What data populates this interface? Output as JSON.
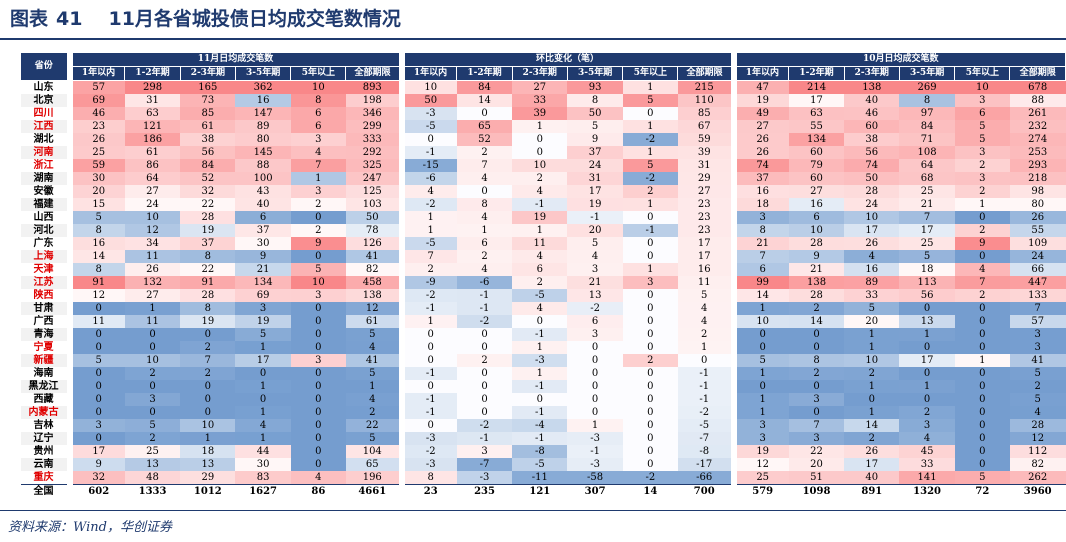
{
  "figure": {
    "label": "图表",
    "number": "41",
    "title": "11月各省城投债日均成交笔数情况"
  },
  "source": "资料来源：Wind，华创证券",
  "table": {
    "province_header": "省份",
    "groups": [
      "11月日均成交笔数",
      "环比变化（笔）",
      "10月日均成交笔数"
    ],
    "subheaders": [
      "1年以内",
      "1-2年期",
      "2-3年期",
      "3-5年期",
      "5年以上",
      "全部期限"
    ],
    "colors": {
      "header_bg": "#1f3a6e",
      "red_text": "#e00000"
    },
    "rows": [
      {
        "name": "山东",
        "red": false,
        "v": [
          57,
          298,
          165,
          362,
          10,
          893,
          10,
          84,
          27,
          93,
          1,
          215,
          47,
          214,
          138,
          269,
          10,
          678
        ]
      },
      {
        "name": "北京",
        "red": false,
        "v": [
          69,
          31,
          73,
          16,
          8,
          198,
          50,
          14,
          33,
          8,
          5,
          110,
          19,
          17,
          40,
          8,
          3,
          88
        ]
      },
      {
        "name": "四川",
        "red": true,
        "v": [
          46,
          63,
          85,
          147,
          6,
          346,
          -3,
          0,
          39,
          50,
          0,
          85,
          49,
          63,
          46,
          97,
          6,
          261
        ]
      },
      {
        "name": "江西",
        "red": true,
        "v": [
          23,
          121,
          61,
          89,
          6,
          299,
          -5,
          65,
          1,
          5,
          1,
          67,
          27,
          55,
          60,
          84,
          5,
          232
        ]
      },
      {
        "name": "湖北",
        "red": false,
        "v": [
          26,
          186,
          38,
          80,
          3,
          333,
          0,
          52,
          0,
          9,
          -2,
          59,
          26,
          134,
          38,
          71,
          5,
          274
        ]
      },
      {
        "name": "河南",
        "red": true,
        "v": [
          25,
          61,
          56,
          145,
          4,
          292,
          -1,
          2,
          0,
          37,
          1,
          39,
          26,
          60,
          56,
          108,
          3,
          253
        ]
      },
      {
        "name": "浙江",
        "red": true,
        "v": [
          59,
          86,
          84,
          88,
          7,
          325,
          -15,
          7,
          10,
          24,
          5,
          31,
          74,
          79,
          74,
          64,
          2,
          293
        ]
      },
      {
        "name": "湖南",
        "red": false,
        "v": [
          30,
          64,
          52,
          100,
          1,
          247,
          -6,
          4,
          2,
          31,
          -2,
          29,
          37,
          60,
          50,
          68,
          3,
          218
        ]
      },
      {
        "name": "安徽",
        "red": false,
        "v": [
          20,
          27,
          32,
          43,
          3,
          125,
          4,
          0,
          4,
          17,
          2,
          27,
          16,
          27,
          28,
          25,
          2,
          98
        ]
      },
      {
        "name": "福建",
        "red": false,
        "v": [
          15,
          24,
          22,
          40,
          2,
          103,
          -2,
          8,
          -1,
          19,
          1,
          23,
          18,
          16,
          24,
          21,
          1,
          80
        ]
      },
      {
        "name": "山西",
        "red": false,
        "v": [
          5,
          10,
          28,
          6,
          0,
          50,
          1,
          4,
          19,
          -1,
          0,
          23,
          3,
          6,
          10,
          7,
          0,
          26
        ]
      },
      {
        "name": "河北",
        "red": false,
        "v": [
          8,
          12,
          19,
          37,
          2,
          78,
          1,
          1,
          1,
          20,
          -1,
          23,
          8,
          10,
          17,
          17,
          2,
          55
        ]
      },
      {
        "name": "广东",
        "red": false,
        "v": [
          16,
          34,
          37,
          30,
          9,
          126,
          -5,
          6,
          11,
          5,
          0,
          17,
          21,
          28,
          26,
          25,
          9,
          109
        ]
      },
      {
        "name": "上海",
        "red": true,
        "v": [
          14,
          11,
          8,
          9,
          0,
          41,
          7,
          2,
          4,
          4,
          0,
          17,
          7,
          9,
          4,
          5,
          0,
          24
        ]
      },
      {
        "name": "天津",
        "red": true,
        "v": [
          8,
          26,
          22,
          21,
          5,
          82,
          2,
          4,
          6,
          3,
          1,
          16,
          6,
          21,
          16,
          18,
          4,
          66
        ]
      },
      {
        "name": "江苏",
        "red": true,
        "v": [
          91,
          132,
          91,
          134,
          10,
          458,
          -9,
          -6,
          2,
          21,
          3,
          11,
          99,
          138,
          89,
          113,
          7,
          447
        ]
      },
      {
        "name": "陕西",
        "red": true,
        "v": [
          12,
          27,
          28,
          69,
          3,
          138,
          -2,
          -1,
          -5,
          13,
          0,
          5,
          14,
          28,
          33,
          56,
          2,
          133
        ]
      },
      {
        "name": "甘肃",
        "red": false,
        "v": [
          0,
          1,
          8,
          3,
          0,
          12,
          -1,
          -1,
          4,
          -2,
          0,
          4,
          1,
          2,
          5,
          0,
          0,
          7
        ]
      },
      {
        "name": "广西",
        "red": false,
        "v": [
          11,
          11,
          19,
          19,
          0,
          61,
          1,
          -2,
          0,
          6,
          0,
          4,
          10,
          14,
          20,
          13,
          0,
          57
        ]
      },
      {
        "name": "青海",
        "red": false,
        "v": [
          0,
          0,
          0,
          5,
          0,
          5,
          0,
          0,
          -1,
          3,
          0,
          2,
          0,
          0,
          1,
          1,
          0,
          3
        ]
      },
      {
        "name": "宁夏",
        "red": true,
        "v": [
          0,
          0,
          2,
          1,
          0,
          4,
          0,
          0,
          1,
          0,
          0,
          1,
          0,
          0,
          1,
          0,
          0,
          3
        ]
      },
      {
        "name": "新疆",
        "red": true,
        "v": [
          5,
          10,
          7,
          17,
          3,
          41,
          0,
          2,
          -3,
          0,
          2,
          0,
          5,
          8,
          10,
          17,
          1,
          41
        ]
      },
      {
        "name": "海南",
        "red": false,
        "v": [
          0,
          2,
          2,
          0,
          0,
          5,
          -1,
          0,
          1,
          0,
          0,
          -1,
          1,
          2,
          2,
          0,
          0,
          5
        ]
      },
      {
        "name": "黑龙江",
        "red": false,
        "v": [
          0,
          0,
          0,
          1,
          0,
          1,
          0,
          0,
          -1,
          0,
          0,
          -1,
          0,
          0,
          1,
          1,
          0,
          2
        ]
      },
      {
        "name": "西藏",
        "red": false,
        "v": [
          0,
          3,
          0,
          0,
          0,
          4,
          -1,
          0,
          0,
          0,
          0,
          -1,
          1,
          3,
          0,
          0,
          0,
          5
        ]
      },
      {
        "name": "内蒙古",
        "red": true,
        "v": [
          0,
          0,
          0,
          1,
          0,
          2,
          -1,
          0,
          -1,
          0,
          0,
          -2,
          1,
          0,
          1,
          2,
          0,
          4
        ]
      },
      {
        "name": "吉林",
        "red": false,
        "v": [
          3,
          5,
          10,
          4,
          0,
          22,
          0,
          -2,
          -4,
          1,
          0,
          -5,
          3,
          7,
          14,
          3,
          0,
          28
        ]
      },
      {
        "name": "辽宁",
        "red": false,
        "v": [
          0,
          2,
          1,
          1,
          0,
          5,
          -3,
          -1,
          -1,
          -3,
          0,
          -7,
          3,
          3,
          2,
          4,
          0,
          12
        ]
      },
      {
        "name": "贵州",
        "red": false,
        "v": [
          17,
          25,
          18,
          44,
          0,
          104,
          -2,
          3,
          -8,
          -1,
          0,
          -8,
          19,
          22,
          26,
          45,
          0,
          112
        ]
      },
      {
        "name": "云南",
        "red": false,
        "v": [
          9,
          13,
          13,
          30,
          0,
          65,
          -3,
          -7,
          -5,
          -3,
          0,
          -17,
          12,
          20,
          17,
          33,
          0,
          82
        ]
      },
      {
        "name": "重庆",
        "red": true,
        "v": [
          32,
          48,
          29,
          83,
          4,
          196,
          8,
          -3,
          -11,
          -58,
          -2,
          -66,
          25,
          51,
          40,
          141,
          5,
          262
        ]
      }
    ],
    "total": {
      "name": "全国",
      "v": [
        602,
        1333,
        1012,
        1627,
        86,
        4661,
        23,
        235,
        121,
        307,
        14,
        700,
        579,
        1098,
        891,
        1320,
        72,
        3960
      ]
    }
  }
}
